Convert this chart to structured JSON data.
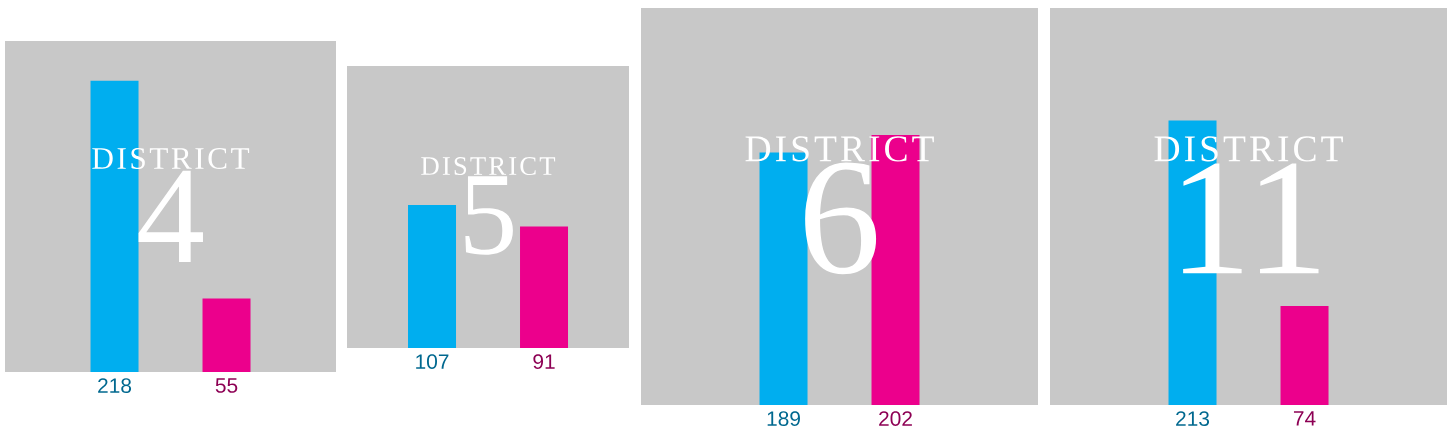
{
  "chart_data": [
    {
      "type": "bar",
      "title": "DISTRICT",
      "subtitle": "4",
      "categories": [
        null,
        null
      ],
      "values": [
        218,
        55
      ],
      "colors": [
        "#00aeef",
        "#ec008c"
      ],
      "data_labels": true
    },
    {
      "type": "bar",
      "title": "DISTRICT",
      "subtitle": "5",
      "categories": [
        null,
        null
      ],
      "values": [
        107,
        91
      ],
      "colors": [
        "#00aeef",
        "#ec008c"
      ],
      "data_labels": true
    },
    {
      "type": "bar",
      "title": "DISTRICT",
      "subtitle": "6",
      "categories": [
        null,
        null
      ],
      "values": [
        189,
        202
      ],
      "colors": [
        "#00aeef",
        "#ec008c"
      ],
      "data_labels": true
    },
    {
      "type": "bar",
      "title": "DISTRICT",
      "subtitle": "11",
      "categories": [
        null,
        null
      ],
      "values": [
        213,
        74
      ],
      "colors": [
        "#00aeef",
        "#ec008c"
      ],
      "data_labels": true
    }
  ]
}
